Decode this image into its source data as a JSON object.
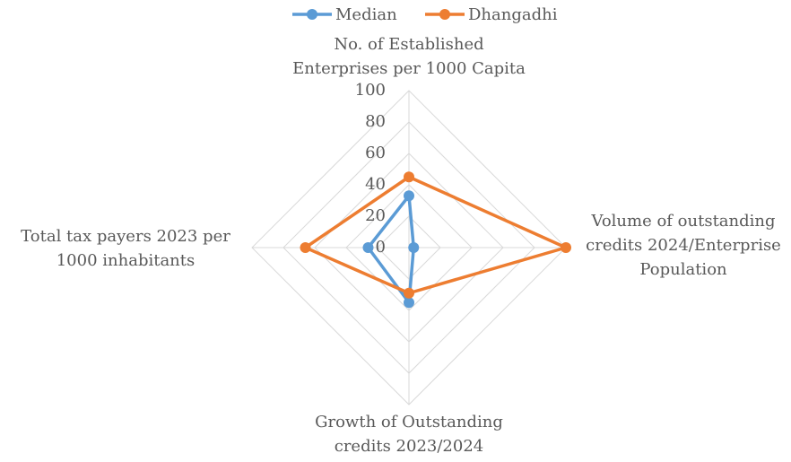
{
  "chart_data": {
    "type": "radar",
    "categories": [
      "No. of Established\nEnterprises per 1000 Capita",
      "Volume of outstanding\ncredits 2024/Enterprise\nPopulation",
      "Growth of Outstanding\ncredits 2023/2024",
      "Total tax payers 2023 per\n1000 inhabitants"
    ],
    "series": [
      {
        "name": "Median",
        "color": "#5b9bd5",
        "values": [
          33,
          3,
          35,
          26
        ]
      },
      {
        "name": "Dhangadhi",
        "color": "#ed7d31",
        "values": [
          45,
          100,
          29,
          66
        ]
      }
    ],
    "rlim": [
      0,
      100
    ],
    "rticks": [
      0,
      20,
      40,
      60,
      80,
      100
    ],
    "grid": true,
    "legend": "top"
  }
}
